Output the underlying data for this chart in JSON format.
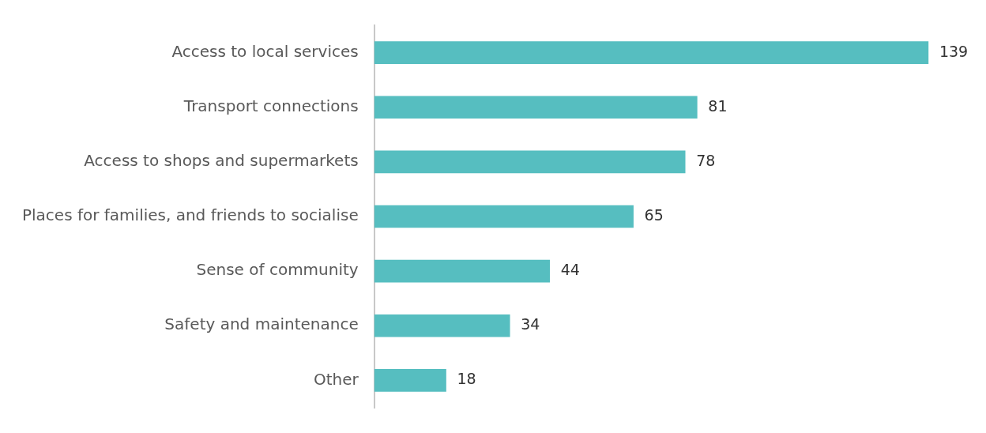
{
  "chart_data": {
    "type": "bar",
    "orientation": "horizontal",
    "categories": [
      "Access to local services",
      "Transport connections",
      "Access to shops and supermarkets",
      "Places for families, and friends to socialise",
      "Sense of community",
      "Safety and maintenance",
      "Other"
    ],
    "values": [
      139,
      81,
      78,
      65,
      44,
      34,
      18
    ],
    "color": "#56bec0",
    "data_labels": true
  }
}
